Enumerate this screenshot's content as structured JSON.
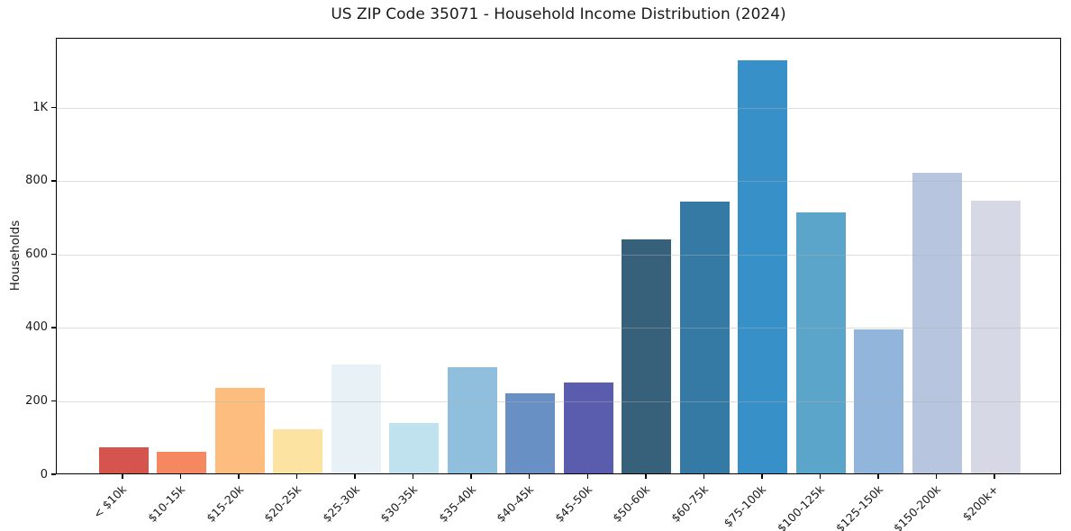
{
  "chart_data": {
    "type": "bar",
    "title": "US ZIP Code 35071 - Household Income Distribution (2024)",
    "xlabel": "",
    "ylabel": "Households",
    "categories": [
      "< $10k",
      "$10-15k",
      "$15-20k",
      "$20-25k",
      "$25-30k",
      "$30-35k",
      "$35-40k",
      "$40-45k",
      "$45-50k",
      "$50-60k",
      "$60-75k",
      "$75-100k",
      "$100-125k",
      "$125-150k",
      "$150-200k",
      "$200k+"
    ],
    "values": [
      70,
      60,
      232,
      120,
      296,
      138,
      290,
      218,
      247,
      637,
      741,
      1127,
      711,
      392,
      820,
      744
    ],
    "bar_colors": [
      "#d5544e",
      "#f58860",
      "#fcbd7e",
      "#fde3a2",
      "#e7f1f6",
      "#c0e1ee",
      "#90bedd",
      "#6890c4",
      "#5a5dae",
      "#37607a",
      "#347aa5",
      "#3790c8",
      "#5aa5c9",
      "#92b5db",
      "#b7c6de",
      "#d7d8e6"
    ],
    "ylim": [
      0,
      1190
    ],
    "yticks": [
      {
        "value": 0,
        "label": "0"
      },
      {
        "value": 200,
        "label": "200"
      },
      {
        "value": 400,
        "label": "400"
      },
      {
        "value": 600,
        "label": "600"
      },
      {
        "value": 800,
        "label": "800"
      },
      {
        "value": 1000,
        "label": "1K"
      }
    ],
    "grid": "horizontal-above-bars",
    "legend": "none",
    "frame": "full-box"
  }
}
